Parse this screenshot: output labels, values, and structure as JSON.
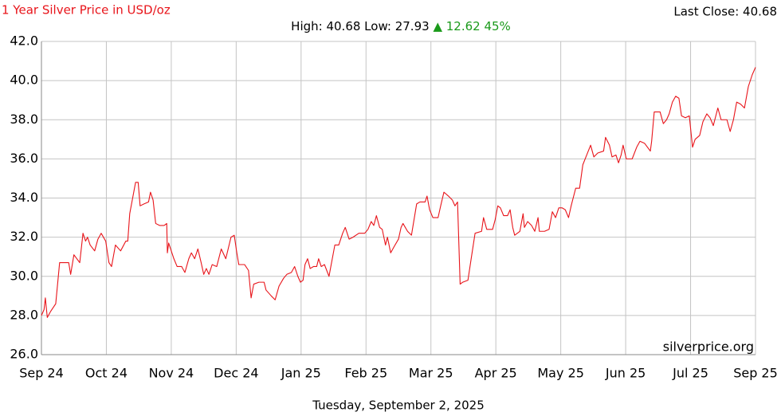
{
  "chart_data": {
    "type": "line",
    "title": "1 Year Silver Price in USD/oz",
    "last_close": "Last Close: 40.68",
    "summary": "High: 40.68 Low: 27.93",
    "change": "▲ 12.62 45%",
    "annotation": "silverprice.org",
    "xlabel": "Tuesday, September 2, 2025",
    "xlim": [
      0,
      110
    ],
    "xticks": [
      {
        "value": 0,
        "label": "Sep 24"
      },
      {
        "value": 10,
        "label": "Oct 24"
      },
      {
        "value": 20,
        "label": "Nov 24"
      },
      {
        "value": 30,
        "label": "Dec 24"
      },
      {
        "value": 40,
        "label": "Jan 25"
      },
      {
        "value": 50,
        "label": "Feb 25"
      },
      {
        "value": 60,
        "label": "Mar 25"
      },
      {
        "value": 70,
        "label": "Apr 25"
      },
      {
        "value": 80,
        "label": "May 25"
      },
      {
        "value": 90,
        "label": "Jun 25"
      },
      {
        "value": 100,
        "label": "Jul 25"
      },
      {
        "value": 110,
        "label": "Sep 25"
      }
    ],
    "ylim": [
      26,
      42
    ],
    "yticks": [
      {
        "value": 26,
        "label": "26.0"
      },
      {
        "value": 28,
        "label": "28.0"
      },
      {
        "value": 30,
        "label": "30.0"
      },
      {
        "value": 32,
        "label": "32.0"
      },
      {
        "value": 34,
        "label": "34.0"
      },
      {
        "value": 36,
        "label": "36.0"
      },
      {
        "value": 38,
        "label": "38.0"
      },
      {
        "value": 40,
        "label": "40.0"
      },
      {
        "value": 42,
        "label": "42.0"
      }
    ],
    "grid": true,
    "x": [
      0,
      0.4,
      0.6,
      0.9,
      1.4,
      2.2,
      2.8,
      4.2,
      4.5,
      5.0,
      5.9,
      6.4,
      6.8,
      7.1,
      7.5,
      8.2,
      8.7,
      9.2,
      9.9,
      10.4,
      10.8,
      11.4,
      12.2,
      13.0,
      13.3,
      13.6,
      14.5,
      14.9,
      15.2,
      15.8,
      16.5,
      16.8,
      17.2,
      17.6,
      18.2,
      18.9,
      19.3,
      19.4,
      19.6,
      20.4,
      20.9,
      21.6,
      22.1,
      22.7,
      23.1,
      23.6,
      24.1,
      24.6,
      25.0,
      25.4,
      25.8,
      26.3,
      27.0,
      27.7,
      28.4,
      29.2,
      29.7,
      30.1,
      30.4,
      31.3,
      31.9,
      32.3,
      32.7,
      33.5,
      34.3,
      34.6,
      35.4,
      36.0,
      36.6,
      37.3,
      37.8,
      38.5,
      39.0,
      39.5,
      39.9,
      40.3,
      40.6,
      41.0,
      41.4,
      41.9,
      42.4,
      42.7,
      43.1,
      43.6,
      44.3,
      45.2,
      45.8,
      46.4,
      46.8,
      47.4,
      48.0,
      48.9,
      49.8,
      50.3,
      50.8,
      51.2,
      51.6,
      52.1,
      52.5,
      53.0,
      53.3,
      53.8,
      54.3,
      55.0,
      55.4,
      55.7,
      56.4,
      57.0,
      57.5,
      57.8,
      58.3,
      59.1,
      59.4,
      59.8,
      60.3,
      61.1,
      61.5,
      62.0,
      62.7,
      63.3,
      63.7,
      64.1,
      64.5,
      64.9,
      65.7,
      66.2,
      66.8,
      67.8,
      68.1,
      68.6,
      69.5,
      69.9,
      70.3,
      70.7,
      71.2,
      71.8,
      72.2,
      72.6,
      72.9,
      73.7,
      74.2,
      74.4,
      74.9,
      75.5,
      76.0,
      76.5,
      76.7,
      77.5,
      78.2,
      78.7,
      79.2,
      79.7,
      80.2,
      80.7,
      81.2,
      81.6,
      82.3,
      82.9,
      83.4,
      84.0,
      84.6,
      85.1,
      85.7,
      86.6,
      86.9,
      87.5,
      87.9,
      88.5,
      88.9,
      89.3,
      89.6,
      90.1,
      91.0,
      91.7,
      92.2,
      92.9,
      93.8,
      94.0,
      94.4,
      95.3,
      95.8,
      96.3,
      96.7,
      97.2,
      97.7,
      98.2,
      98.6,
      99.2,
      99.8,
      100.3,
      100.7,
      101.4,
      101.9,
      102.5,
      103.0,
      103.5,
      104.2,
      104.7,
      105.6,
      106.1,
      106.6,
      107.1,
      107.7,
      108.3,
      108.9,
      109.5,
      110.0
    ],
    "series": [
      {
        "name": "Silver",
        "color": "#e8141a",
        "values": [
          28.0,
          28.3,
          28.9,
          27.9,
          28.2,
          28.6,
          30.7,
          30.7,
          30.1,
          31.1,
          30.7,
          32.2,
          31.8,
          32.0,
          31.6,
          31.3,
          31.9,
          32.2,
          31.8,
          30.7,
          30.5,
          31.6,
          31.3,
          31.8,
          31.8,
          33.2,
          34.8,
          34.8,
          33.6,
          33.7,
          33.8,
          34.3,
          33.9,
          32.7,
          32.6,
          32.6,
          32.7,
          31.2,
          31.7,
          30.9,
          30.5,
          30.5,
          30.2,
          30.9,
          31.2,
          30.9,
          31.4,
          30.7,
          30.1,
          30.4,
          30.1,
          30.6,
          30.5,
          31.4,
          30.9,
          32.0,
          32.1,
          31.2,
          30.6,
          30.6,
          30.3,
          28.9,
          29.6,
          29.7,
          29.7,
          29.3,
          29.0,
          28.8,
          29.5,
          29.9,
          30.1,
          30.2,
          30.5,
          30.0,
          29.7,
          29.8,
          30.6,
          30.9,
          30.4,
          30.5,
          30.5,
          30.9,
          30.5,
          30.6,
          30.0,
          31.6,
          31.6,
          32.2,
          32.5,
          31.9,
          32.0,
          32.2,
          32.2,
          32.4,
          32.8,
          32.6,
          33.1,
          32.5,
          32.4,
          31.6,
          32.0,
          31.2,
          31.5,
          31.9,
          32.5,
          32.7,
          32.3,
          32.1,
          33.1,
          33.7,
          33.8,
          33.8,
          34.1,
          33.4,
          33.0,
          33.0,
          33.6,
          34.3,
          34.1,
          33.9,
          33.6,
          33.8,
          29.6,
          29.7,
          29.8,
          30.9,
          32.2,
          32.3,
          33.0,
          32.4,
          32.4,
          32.9,
          33.6,
          33.5,
          33.1,
          33.1,
          33.4,
          32.5,
          32.1,
          32.3,
          33.2,
          32.5,
          32.8,
          32.6,
          32.3,
          33.0,
          32.3,
          32.3,
          32.4,
          33.3,
          33.0,
          33.5,
          33.5,
          33.4,
          33.0,
          33.6,
          34.5,
          34.5,
          35.7,
          36.2,
          36.7,
          36.1,
          36.3,
          36.4,
          37.1,
          36.7,
          36.1,
          36.2,
          35.8,
          36.2,
          36.7,
          36.0,
          36.0,
          36.6,
          36.9,
          36.8,
          36.4,
          36.9,
          38.4,
          38.4,
          37.8,
          38.0,
          38.3,
          38.9,
          39.2,
          39.1,
          38.2,
          38.1,
          38.2,
          36.6,
          37.0,
          37.2,
          37.9,
          38.3,
          38.1,
          37.7,
          38.6,
          38.0,
          38.0,
          37.4,
          38.0,
          38.9,
          38.8,
          38.6,
          39.7,
          40.3,
          40.68
        ]
      }
    ]
  }
}
